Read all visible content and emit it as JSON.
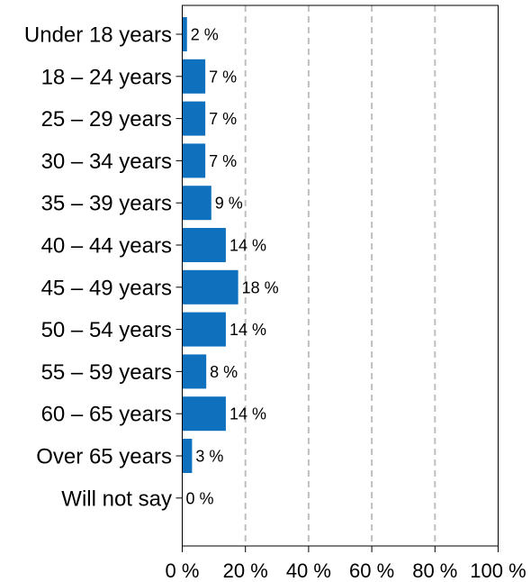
{
  "chart_data": {
    "type": "bar",
    "orientation": "horizontal",
    "categories": [
      "Under 18 years",
      "18 – 24 years",
      "25 – 29 years",
      "30 – 34 years",
      "35 – 39 years",
      "40 – 44 years",
      "45 – 49 years",
      "50 – 54 years",
      "55 – 59 years",
      "60 – 65 years",
      "Over 65 years",
      "Will not say"
    ],
    "values": [
      1.5,
      7.3,
      7.3,
      7.3,
      9.2,
      13.8,
      17.7,
      13.8,
      7.6,
      13.8,
      3.1,
      0
    ],
    "value_labels": [
      "2 %",
      "7 %",
      "7 %",
      "7 %",
      "9 %",
      "14 %",
      "18 %",
      "14 %",
      "8 %",
      "14 %",
      "3 %",
      "0 %"
    ],
    "xlim": [
      0,
      100
    ],
    "x_ticks": [
      0,
      20,
      40,
      60,
      80,
      100
    ],
    "x_tick_labels": [
      "0 %",
      "20 %",
      "40 %",
      "60 %",
      "80 %",
      "100 %"
    ],
    "grid": "vertical dashed",
    "bar_color": "#0f71bd",
    "grid_color": "#bfbfbf",
    "title": "",
    "xlabel": "",
    "ylabel": ""
  }
}
